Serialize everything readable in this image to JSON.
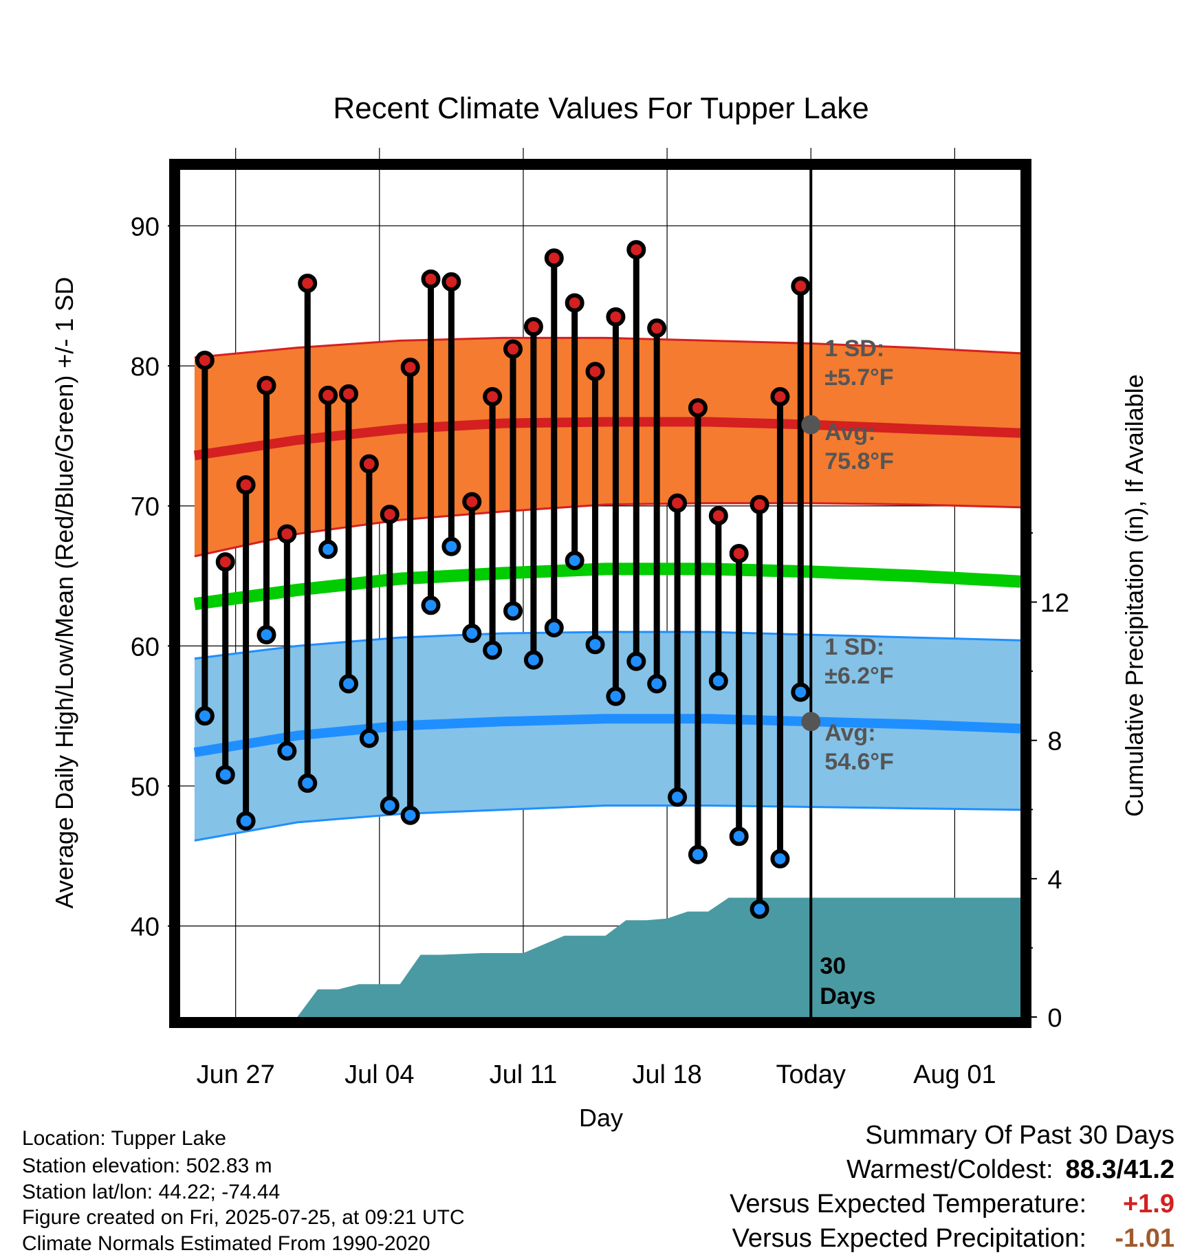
{
  "chart_data": {
    "type": "line",
    "title": "Recent Climate Values For Tupper Lake",
    "xlabel": "Day",
    "ylabel_left": "Average Daily High/Low/Mean (Red/Blue/Green) +/- 1 SD",
    "ylabel_right": "Cumulative Precipitation (in), If Available",
    "x_tick_labels": [
      "Jun 27",
      "Jul 04",
      "Jul 11",
      "Jul 18",
      "Today",
      "Aug 01"
    ],
    "x_tick_days": [
      2,
      9,
      16,
      23,
      30,
      37
    ],
    "ylim_left": [
      33.5,
      94
    ],
    "yticks_left": [
      40,
      50,
      60,
      70,
      80,
      90
    ],
    "ylim_right": [
      0,
      24.5
    ],
    "yticks_right": [
      0,
      4,
      8,
      12
    ],
    "xlim": [
      -0.7,
      40.2
    ],
    "today_day": 30,
    "today_label": [
      "30",
      "Days"
    ],
    "daily_high": [
      80.4,
      66.0,
      71.5,
      78.6,
      68.0,
      85.9,
      77.9,
      78.0,
      73.0,
      69.4,
      79.9,
      86.2,
      86.0,
      70.3,
      77.8,
      81.2,
      82.8,
      87.7,
      84.5,
      79.6,
      83.5,
      88.3,
      82.7,
      70.2,
      77.0,
      69.3,
      66.6,
      70.1,
      77.8,
      85.7
    ],
    "daily_low": [
      55.0,
      50.8,
      47.5,
      60.8,
      52.5,
      50.2,
      66.9,
      57.3,
      53.4,
      48.6,
      47.9,
      62.9,
      67.1,
      60.9,
      59.7,
      62.5,
      59.0,
      61.3,
      66.1,
      60.1,
      56.4,
      58.9,
      57.3,
      49.2,
      45.1,
      57.5,
      46.4,
      41.2,
      44.8,
      56.7
    ],
    "normal_days": [
      0,
      5,
      10,
      15,
      20,
      25,
      30,
      35,
      40.2
    ],
    "normal_high_avg": [
      73.6,
      74.7,
      75.5,
      75.9,
      76.0,
      76.0,
      75.8,
      75.5,
      75.2
    ],
    "normal_high_upper": [
      80.6,
      81.3,
      81.8,
      82.0,
      82.0,
      81.8,
      81.6,
      81.3,
      80.9
    ],
    "normal_high_lower": [
      66.4,
      68.0,
      69.0,
      69.6,
      70.1,
      70.2,
      70.2,
      70.1,
      69.9
    ],
    "normal_mean": [
      63.0,
      64.0,
      64.8,
      65.2,
      65.5,
      65.5,
      65.3,
      65.0,
      64.6
    ],
    "normal_low_avg": [
      52.4,
      53.6,
      54.3,
      54.6,
      54.8,
      54.8,
      54.6,
      54.4,
      54.1
    ],
    "normal_low_upper": [
      59.1,
      60.0,
      60.6,
      60.9,
      61.0,
      61.0,
      60.8,
      60.6,
      60.4
    ],
    "normal_low_lower": [
      46.1,
      47.4,
      48.0,
      48.3,
      48.6,
      48.6,
      48.5,
      48.4,
      48.3
    ],
    "precip_days": [
      0,
      5,
      6,
      7,
      8,
      10,
      11,
      12,
      14,
      16,
      17,
      18,
      20,
      21,
      22,
      23,
      24,
      25,
      26,
      30,
      40.2
    ],
    "precip_cumulative": [
      0,
      0,
      0.8,
      0.8,
      0.95,
      0.95,
      1.8,
      1.8,
      1.85,
      1.85,
      2.1,
      2.35,
      2.35,
      2.8,
      2.8,
      2.85,
      3.05,
      3.05,
      3.45,
      3.45,
      3.45
    ],
    "annotations": {
      "high_sd": [
        "1 SD:",
        "±5.7°F"
      ],
      "high_avg": [
        "Avg:",
        "75.8°F"
      ],
      "low_sd": [
        "1 SD:",
        "±6.2°F"
      ],
      "low_avg": [
        "Avg:",
        "54.6°F"
      ]
    },
    "colors": {
      "high_band": "#f47b30",
      "high_avg": "#d42020",
      "mean": "#00cc00",
      "low_band": "#84c2e8",
      "low_avg": "#1f8fff",
      "precip": "#4a9aa3",
      "high_dot": "#d42020",
      "low_dot": "#1f8fff",
      "today_dot": "#555555"
    }
  },
  "info": {
    "location": "Location: Tupper Lake",
    "elevation": "Station elevation: 502.83 m",
    "latlon": "Station lat/lon: 44.22; -74.44",
    "created": "Figure created on Fri, 2025-07-25, at 09:21 UTC",
    "normals": "Climate Normals Estimated From 1990-2020"
  },
  "summary": {
    "heading": "Summary Of Past 30 Days",
    "warm_cold_label": "Warmest/Coldest:",
    "warm_cold_value": "88.3/41.2",
    "temp_label": "Versus Expected Temperature:",
    "temp_value": "+1.9",
    "temp_color": "#d42020",
    "precip_label": "Versus Expected Precipitation:",
    "precip_value": "-1.01",
    "precip_color": "#a05a2c"
  }
}
